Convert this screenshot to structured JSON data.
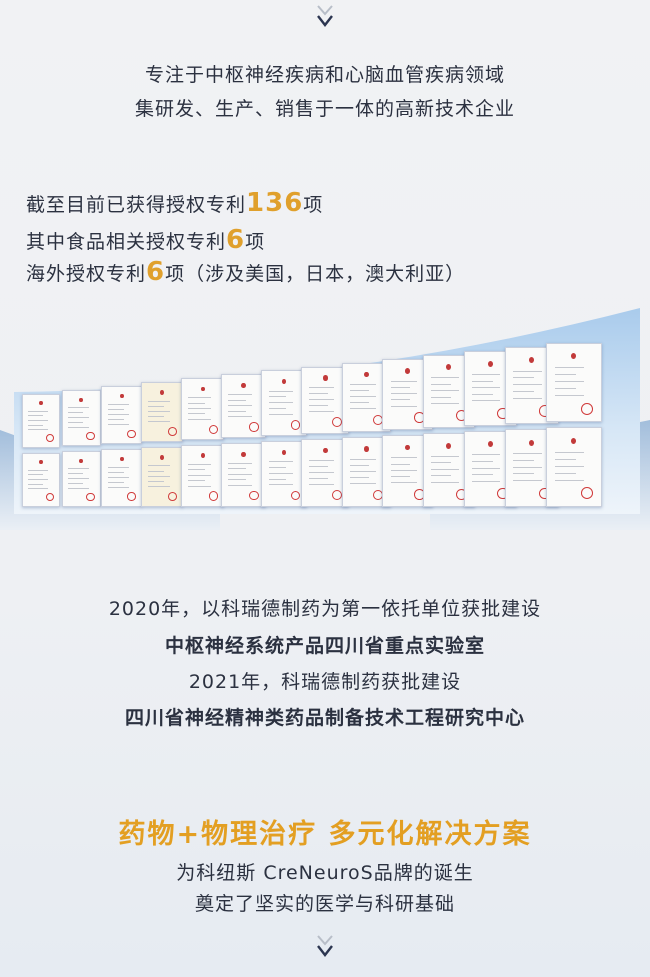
{
  "intro": {
    "line1": "专注于中枢神经疾病和心脑血管疾病领域",
    "line2": "集研发、生产、销售于一体的高新技术企业"
  },
  "patents": {
    "row1_pre": "截至目前已获得授权专利",
    "row1_num": "136",
    "row1_post": "项",
    "row2_pre": "其中食品相关授权专利",
    "row2_num": "6",
    "row2_post": "项",
    "row3_pre": "海外授权专利",
    "row3_num": "6",
    "row3_post": "项（涉及美国，日本，澳大利亚）"
  },
  "labs": {
    "line1": "2020年，以科瑞德制药为第一依托单位获批建设",
    "line2": "中枢神经系统产品四川省重点实验室",
    "line3": "2021年，科瑞德制药获批建设",
    "line4": "四川省神经精神类药品制备技术工程研究中心"
  },
  "solution": {
    "slogan": "药物+物理治疗 多元化解决方案",
    "line1": "为科纽斯 CreNeuroS品牌的诞生",
    "line2": "奠定了坚实的医学与科研基础"
  },
  "colors": {
    "accent": "#e0a02c",
    "text": "#2b3140",
    "panel": "#bcd6ef"
  },
  "icons": {
    "top": "double-chevron-down-icon",
    "bottom": "double-chevron-down-icon"
  }
}
